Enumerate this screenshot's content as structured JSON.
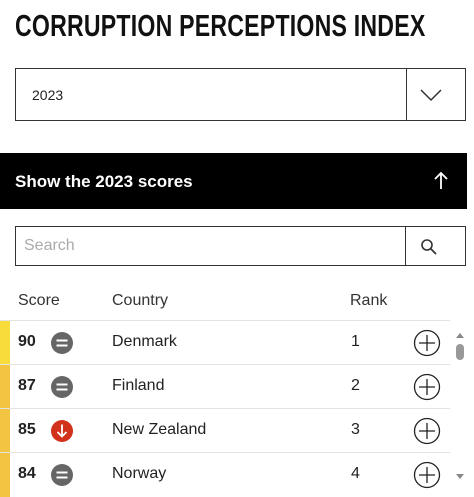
{
  "header": {
    "title": "CORRUPTION PERCEPTIONS INDEX"
  },
  "year_select": {
    "value": "2023"
  },
  "toggle": {
    "label": "Show the 2023 scores"
  },
  "search": {
    "placeholder": "Search"
  },
  "table": {
    "columns": [
      "Score",
      "Country",
      "Rank"
    ],
    "rows": [
      [
        90,
        "Denmark",
        1
      ],
      [
        87,
        "Finland",
        2
      ],
      [
        85,
        "New Zealand",
        3
      ],
      [
        84,
        "Norway",
        4
      ]
    ]
  }
}
